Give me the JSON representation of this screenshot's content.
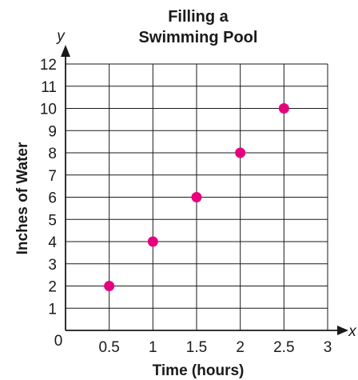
{
  "chart_data": {
    "type": "scatter",
    "title_lines": [
      "Filling a",
      "Swimming Pool"
    ],
    "xlabel": "Time (hours)",
    "ylabel": "Inches of Water",
    "x_var": "x",
    "y_var": "y",
    "origin_label": "0",
    "xlim": [
      0,
      3
    ],
    "ylim": [
      0,
      12
    ],
    "x_ticks": [
      "0.5",
      "1",
      "1.5",
      "2",
      "2.5",
      "3"
    ],
    "y_ticks": [
      "1",
      "2",
      "3",
      "4",
      "5",
      "6",
      "7",
      "8",
      "9",
      "10",
      "11",
      "12"
    ],
    "grid": true,
    "points": [
      {
        "x": 0.5,
        "y": 2
      },
      {
        "x": 1,
        "y": 4
      },
      {
        "x": 1.5,
        "y": 6
      },
      {
        "x": 2,
        "y": 8
      },
      {
        "x": 2.5,
        "y": 10
      }
    ],
    "colors": {
      "point": "#e6007e",
      "axis": "#1a1a1a",
      "grid": "#1a1a1a"
    }
  }
}
